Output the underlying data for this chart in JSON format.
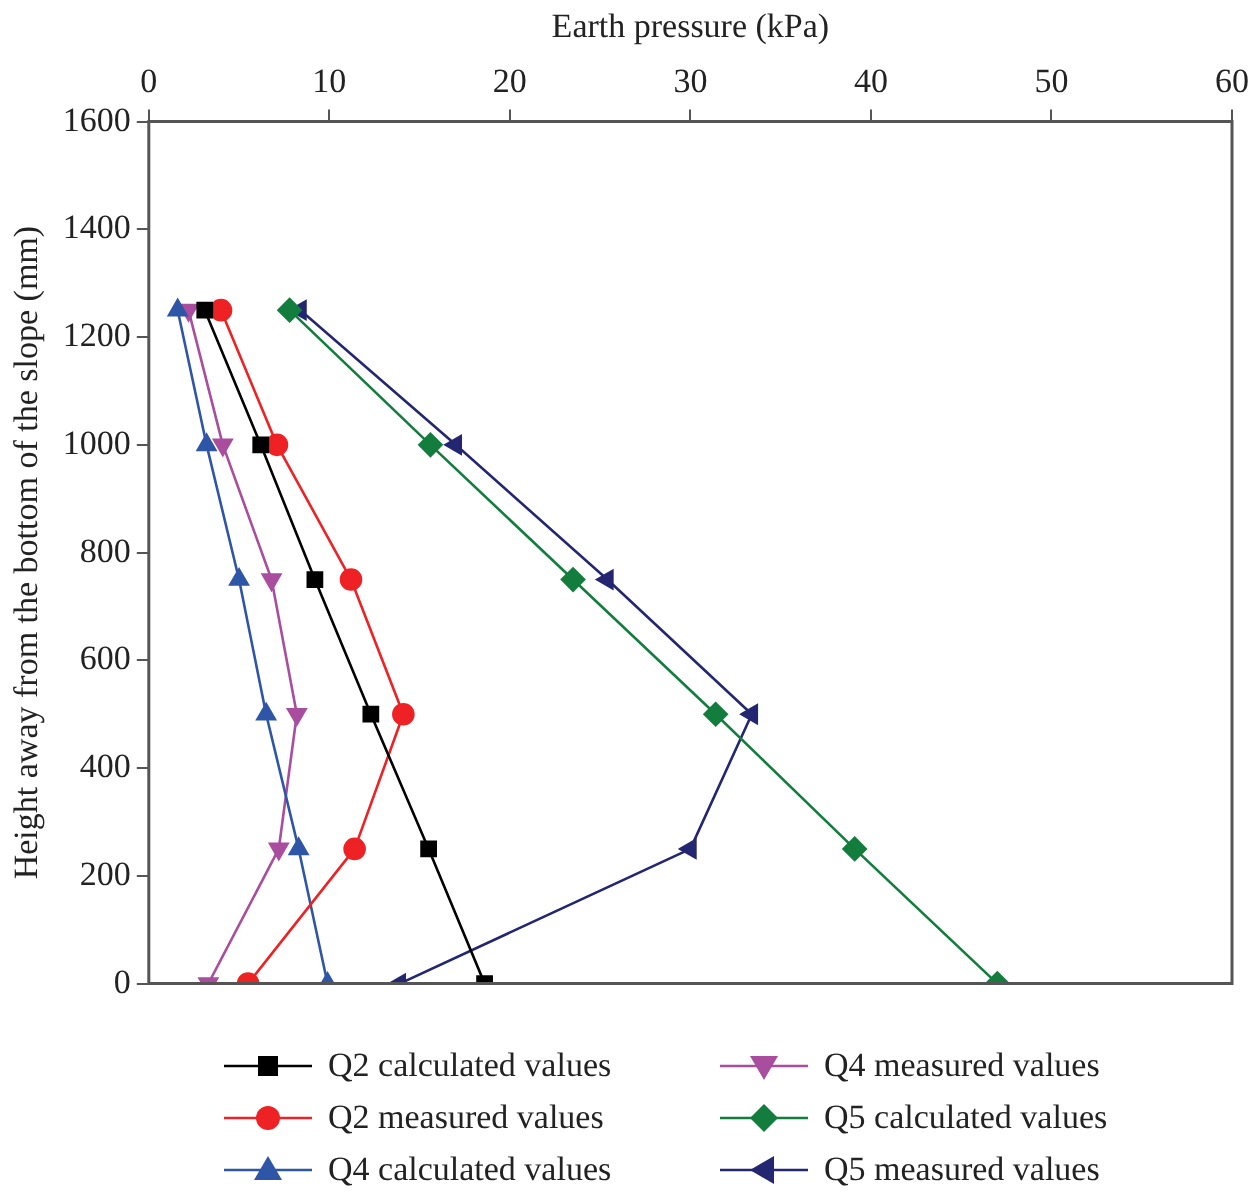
{
  "chart_data": {
    "type": "line",
    "xlabel": "Earth pressure (kPa)",
    "ylabel": "Height away from the bottom of the slope (mm)",
    "xlim": [
      0,
      60
    ],
    "xticks": [
      0,
      10,
      20,
      30,
      40,
      50,
      60
    ],
    "ylim": [
      0,
      1600
    ],
    "yticks": [
      0,
      200,
      400,
      600,
      800,
      1000,
      1200,
      1400,
      1600
    ],
    "grid": false,
    "legend": "bottom",
    "series": [
      {
        "name": "Q2 calculated values",
        "color": "#000000",
        "marker": "square",
        "x": [
          3.1,
          6.2,
          9.2,
          12.3,
          15.5,
          18.6
        ],
        "values": [
          1250,
          1000,
          750,
          500,
          250,
          0
        ]
      },
      {
        "name": "Q2 measured values",
        "color": "#ee2124",
        "marker": "circle",
        "x": [
          4.0,
          7.1,
          11.2,
          14.1,
          11.4,
          5.5
        ],
        "values": [
          1250,
          1000,
          750,
          500,
          250,
          0
        ]
      },
      {
        "name": "Q4 calculated values",
        "color": "#2f56a6",
        "marker": "triangle",
        "x": [
          1.6,
          3.2,
          5.0,
          6.5,
          8.3,
          9.9
        ],
        "values": [
          1250,
          1000,
          750,
          500,
          250,
          0
        ]
      },
      {
        "name": "Q4 measured values",
        "color": "#a94d9e",
        "marker": "triangle-down",
        "x": [
          2.2,
          4.1,
          6.8,
          8.2,
          7.2,
          3.3
        ],
        "values": [
          1250,
          1000,
          750,
          500,
          250,
          0
        ]
      },
      {
        "name": "Q5 calculated values",
        "color": "#137d3d",
        "marker": "diamond",
        "x": [
          7.8,
          15.6,
          23.5,
          31.4,
          39.1,
          47.0
        ],
        "values": [
          1250,
          1000,
          750,
          500,
          250,
          0
        ]
      },
      {
        "name": "Q5 measured values",
        "color": "#232670",
        "marker": "triangle-left",
        "x": [
          8.4,
          17.0,
          25.4,
          33.4,
          30.0,
          13.9
        ],
        "values": [
          1250,
          1000,
          750,
          500,
          250,
          0
        ]
      }
    ]
  }
}
